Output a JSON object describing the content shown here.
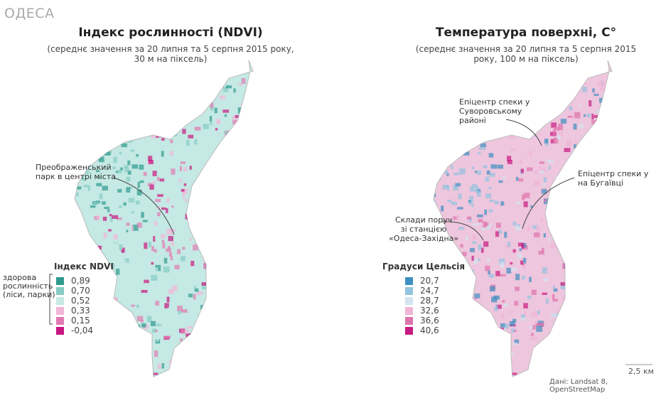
{
  "city": "ОДЕСА",
  "left": {
    "title": "Індекс рослинності (NDVI)",
    "subtitle1": "(середнє значення за 20 липня та 5 серпня 2015 року,",
    "subtitle2": "30 м на піксель)",
    "annotation": [
      "Преображенський",
      "парк в центрі міста"
    ],
    "legend": {
      "title": "Індекс NDVI",
      "bracket_label": [
        "здорова",
        "рослинність",
        "(ліси, парки)"
      ],
      "items": [
        {
          "label": "0,89",
          "color": "#2e9a8e"
        },
        {
          "label": "0,70",
          "color": "#86cbc4"
        },
        {
          "label": "0,52",
          "color": "#c5e9e4"
        },
        {
          "label": "0,33",
          "color": "#f2b6d8"
        },
        {
          "label": "0,15",
          "color": "#e37ab3"
        },
        {
          "label": "-0,04",
          "color": "#c9157f"
        }
      ]
    }
  },
  "right": {
    "title": "Температура поверхні, С°",
    "subtitle1": "(середнє значення за 20 липня та 5 серпня 2015",
    "subtitle2": "року, 100 м на піксель)",
    "annotations": [
      [
        "Епіцентр спеки у",
        "Суворовському",
        "районі"
      ],
      [
        "Епіцентр спеки у",
        "на Бугаївці"
      ],
      [
        "Склади поруч",
        "зі станцією",
        "«Одеса-Західна»"
      ]
    ],
    "legend": {
      "title": "Градуси Цельсія",
      "items": [
        {
          "label": "20,7",
          "color": "#3f8fc0"
        },
        {
          "label": "24,7",
          "color": "#94c3de"
        },
        {
          "label": "28,7",
          "color": "#d3e4f0"
        },
        {
          "label": "32,6",
          "color": "#f0b5d6"
        },
        {
          "label": "36,6",
          "color": "#de74ad"
        },
        {
          "label": "40,6",
          "color": "#c71a7f"
        }
      ]
    }
  },
  "scale": "2,5 км",
  "source": "Дані: Landsat 8, OpenStreetMap"
}
